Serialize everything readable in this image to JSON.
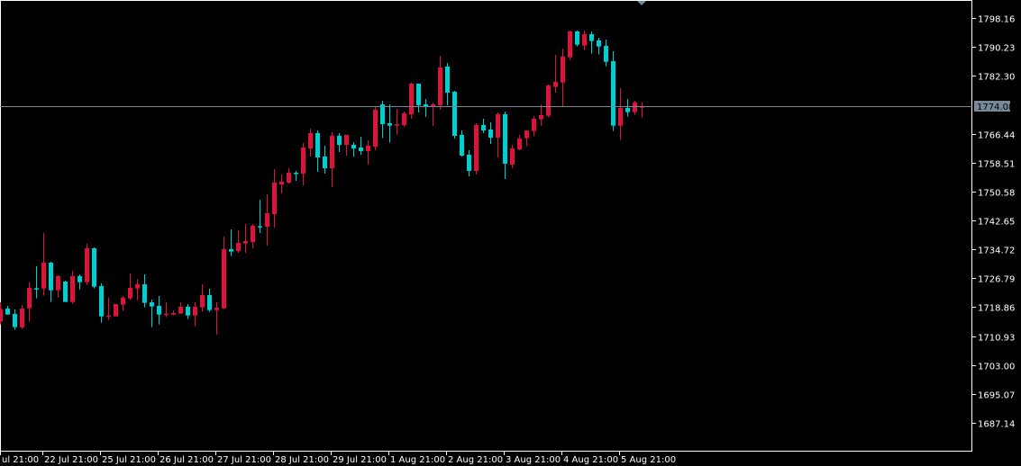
{
  "window": {
    "title": ""
  },
  "colors": {
    "background": "#000000",
    "axis": "#ffffff",
    "bull": "#DC143C",
    "bear": "#00CED1",
    "price_line": "#778899"
  },
  "chart_data": {
    "type": "candlestick",
    "timeframe_step_hours": 3,
    "current_price": "1774.08",
    "ylim": [
      1687.14,
      1798.16
    ],
    "y_ticks": [
      "1798.16",
      "1790.23",
      "1782.30",
      "1766.44",
      "1758.51",
      "1750.58",
      "1742.65",
      "1734.72",
      "1726.79",
      "1718.86",
      "1710.93",
      "1703.00",
      "1695.07",
      "1687.14"
    ],
    "x_ticks": [
      "ul 21:00",
      "22 Jul 21:00",
      "25 Jul 21:00",
      "26 Jul 21:00",
      "27 Jul 21:00",
      "28 Jul 21:00",
      "29 Jul 21:00",
      "1 Aug 21:00",
      "2 Aug 21:00",
      "3 Aug 21:00",
      "4 Aug 21:00",
      "5 Aug 21:00"
    ],
    "grid": false,
    "ohlc": [
      [
        1714.93,
        1720.2,
        1714.11,
        1718.39
      ],
      [
        1718.47,
        1719.21,
        1716.83,
        1716.83
      ],
      [
        1716.99,
        1718.22,
        1712.63,
        1713.37
      ],
      [
        1713.37,
        1719.46,
        1712.88,
        1718.47
      ],
      [
        1718.55,
        1725.62,
        1714.85,
        1724.14
      ],
      [
        1724.06,
        1730.07,
        1721.27,
        1724.0
      ],
      [
        1723.98,
        1739.19,
        1722.01,
        1731.05
      ],
      [
        1731.05,
        1731.3,
        1720.28,
        1723.49
      ],
      [
        1723.49,
        1727.6,
        1721.51,
        1727.35
      ],
      [
        1725.87,
        1726.12,
        1720.28,
        1720.28
      ],
      [
        1720.28,
        1728.83,
        1719.79,
        1727.35
      ],
      [
        1727.35,
        1727.85,
        1723.73,
        1725.71
      ],
      [
        1725.71,
        1736.23,
        1724.97,
        1735.0
      ],
      [
        1735.0,
        1735.25,
        1723.98,
        1724.47
      ],
      [
        1724.64,
        1725.38,
        1714.61,
        1716.33
      ],
      [
        1716.5,
        1721.43,
        1715.35,
        1716.55
      ],
      [
        1716.33,
        1719.7,
        1716.33,
        1719.7
      ],
      [
        1719.54,
        1721.92,
        1717.81,
        1721.43
      ],
      [
        1721.27,
        1728.09,
        1720.77,
        1724.14
      ],
      [
        1723.98,
        1726.61,
        1720.77,
        1725.13
      ],
      [
        1725.13,
        1727.85,
        1718.8,
        1720.03
      ],
      [
        1720.2,
        1720.94,
        1713.37,
        1719.05
      ],
      [
        1719.21,
        1721.92,
        1714.11,
        1716.83
      ],
      [
        1716.99,
        1720.2,
        1716.09,
        1717.05
      ],
      [
        1716.83,
        1717.98,
        1716.58,
        1717.24
      ],
      [
        1717.07,
        1720.2,
        1717.07,
        1718.96
      ],
      [
        1718.96,
        1719.7,
        1715.59,
        1716.58
      ],
      [
        1716.58,
        1720.2,
        1713.62,
        1718.96
      ],
      [
        1718.8,
        1725.13,
        1717.57,
        1722.17
      ],
      [
        1722.17,
        1723.9,
        1717.57,
        1718.06
      ],
      [
        1718.06,
        1720.2,
        1711.4,
        1718.72
      ],
      [
        1718.55,
        1738.21,
        1718.31,
        1734.75
      ],
      [
        1734.75,
        1740.18,
        1732.86,
        1734.09
      ],
      [
        1734.26,
        1739.94,
        1733.77,
        1736.48
      ],
      [
        1736.32,
        1741.66,
        1733.77,
        1736.98
      ],
      [
        1736.73,
        1741.66,
        1735.0,
        1741.17
      ],
      [
        1741.09,
        1748.32,
        1739.2,
        1741.0
      ],
      [
        1740.92,
        1749.8,
        1735.74,
        1744.62
      ],
      [
        1744.38,
        1756.71,
        1740.68,
        1753.01
      ],
      [
        1752.52,
        1755.23,
        1750.05,
        1753.26
      ],
      [
        1753.01,
        1756.96,
        1752.77,
        1755.73
      ],
      [
        1755.73,
        1756.22,
        1753.5,
        1755.6
      ],
      [
        1755.48,
        1763.87,
        1752.27,
        1762.63
      ],
      [
        1762.39,
        1767.81,
        1760.17,
        1766.58
      ],
      [
        1766.58,
        1767.32,
        1755.97,
        1759.92
      ],
      [
        1760.17,
        1763.13,
        1755.48,
        1756.96
      ],
      [
        1756.96,
        1766.83,
        1751.78,
        1765.84
      ],
      [
        1765.84,
        1766.58,
        1761.4,
        1763.37
      ],
      [
        1763.37,
        1766.09,
        1760.41,
        1766.09
      ],
      [
        1763.37,
        1764.11,
        1760.17,
        1762.39
      ],
      [
        1762.63,
        1765.59,
        1760.66,
        1761.65
      ],
      [
        1761.65,
        1764.61,
        1757.95,
        1763.13
      ],
      [
        1762.88,
        1773.98,
        1761.89,
        1772.99
      ],
      [
        1774.47,
        1775.46,
        1765.28,
        1769.05
      ],
      [
        1769.3,
        1774.48,
        1763.95,
        1768.64
      ],
      [
        1768.64,
        1773.25,
        1766.17,
        1769.05
      ],
      [
        1768.8,
        1772.51,
        1768.31,
        1772.01
      ],
      [
        1771.76,
        1780.4,
        1770.53,
        1780.15
      ],
      [
        1780.15,
        1780.15,
        1772.26,
        1774.23
      ],
      [
        1774.48,
        1775.96,
        1771.02,
        1773.98
      ],
      [
        1773.98,
        1774.97,
        1768.56,
        1774.48
      ],
      [
        1774.23,
        1787.8,
        1773.0,
        1784.59
      ],
      [
        1784.84,
        1785.83,
        1774.23,
        1777.69
      ],
      [
        1777.93,
        1778.18,
        1765.1,
        1765.84
      ],
      [
        1766.09,
        1767.32,
        1760.17,
        1760.42
      ],
      [
        1760.66,
        1761.9,
        1754.74,
        1756.22
      ],
      [
        1756.22,
        1769.3,
        1755.24,
        1768.8
      ],
      [
        1768.8,
        1770.53,
        1766.58,
        1767.32
      ],
      [
        1767.57,
        1769.54,
        1763.62,
        1765.35
      ],
      [
        1765.35,
        1772.26,
        1759.92,
        1771.76
      ],
      [
        1771.76,
        1772.51,
        1754.0,
        1758.2
      ],
      [
        1757.95,
        1763.38,
        1756.96,
        1762.39
      ],
      [
        1762.14,
        1766.09,
        1761.9,
        1765.1
      ],
      [
        1765.19,
        1767.32,
        1762.97,
        1767.32
      ],
      [
        1767.16,
        1771.27,
        1765.68,
        1770.53
      ],
      [
        1770.37,
        1774.48,
        1768.64,
        1771.52
      ],
      [
        1771.35,
        1779.91,
        1770.86,
        1779.66
      ],
      [
        1779.25,
        1788.05,
        1777.69,
        1780.64
      ],
      [
        1780.48,
        1789.77,
        1773.82,
        1787.55
      ],
      [
        1787.39,
        1794.71,
        1786.65,
        1794.46
      ],
      [
        1794.46,
        1794.71,
        1790.35,
        1790.84
      ],
      [
        1790.59,
        1794.71,
        1789.36,
        1793.72
      ],
      [
        1793.72,
        1794.46,
        1788.37,
        1791.83
      ],
      [
        1791.99,
        1792.73,
        1788.13,
        1790.35
      ],
      [
        1790.51,
        1792.24,
        1784.92,
        1786.15
      ],
      [
        1786.32,
        1789.03,
        1767.16,
        1768.64
      ],
      [
        1768.64,
        1778.92,
        1764.69,
        1773.49
      ],
      [
        1773.49,
        1775.96,
        1771.11,
        1772.34
      ],
      [
        1772.34,
        1775.46,
        1771.6,
        1774.97
      ],
      [
        1773.57,
        1774.97,
        1770.86,
        1773.98
      ]
    ]
  }
}
